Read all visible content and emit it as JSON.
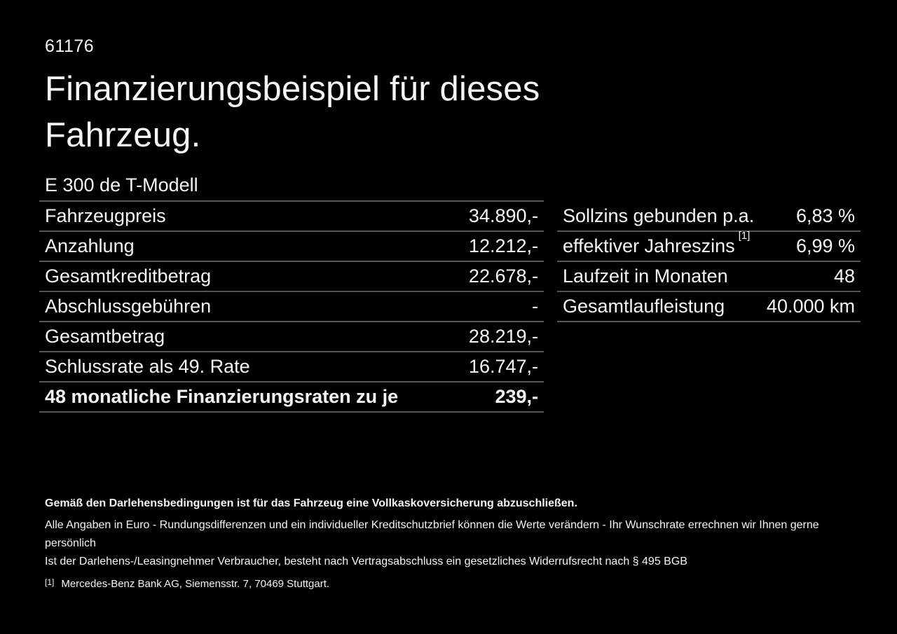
{
  "page": {
    "doc_number": "61176",
    "title": "Finanzierungsbeispiel für dieses Fahrzeug.",
    "model": "E 300 de T-Modell"
  },
  "finance_table": {
    "rows": [
      {
        "label": "Fahrzeugpreis",
        "value": "34.890,-"
      },
      {
        "label": "Anzahlung",
        "value": "12.212,-"
      },
      {
        "label": "Gesamtkreditbetrag",
        "value": "22.678,-"
      },
      {
        "label": "Abschlussgebühren",
        "value": "-"
      },
      {
        "label": "Gesamtbetrag",
        "value": "28.219,-"
      },
      {
        "label": "Schlussrate als 49. Rate",
        "value": "16.747,-"
      },
      {
        "label": "48 monatliche Finanzierungsraten zu je",
        "value": "239,-"
      }
    ]
  },
  "conditions_table": {
    "rows": [
      {
        "label": "Sollzins gebunden p.a.",
        "sup": "",
        "value": "6,83 %"
      },
      {
        "label": "effektiver Jahreszins",
        "sup": "[1]",
        "value": "6,99 %"
      },
      {
        "label": "Laufzeit in Monaten",
        "sup": "",
        "value": "48"
      },
      {
        "label": "Gesamtlaufleistung",
        "sup": "",
        "value": "40.000 km"
      }
    ]
  },
  "footer": {
    "bold_note": "Gemäß den Darlehensbedingungen ist für das Fahrzeug eine Vollkaskoversicherung abzuschließen.",
    "note_line1": "Alle Angaben in Euro - Rundungsdifferenzen und ein individueller Kreditschutzbrief können die Werte verändern - Ihr Wunschrate errechnen wir Ihnen gerne persönlich",
    "note_line2": "Ist der Darlehens-/Leasingnehmer Verbraucher, besteht nach Vertragsabschluss ein gesetzliches Widerrufsrecht nach § 495 BGB",
    "footnote_marker": "[1]",
    "footnote_text": "Mercedes-Benz Bank AG, Siemensstr. 7, 70469 Stuttgart."
  },
  "colors": {
    "background": "#000000",
    "text": "#f5f5f5",
    "divider": "#555555"
  }
}
